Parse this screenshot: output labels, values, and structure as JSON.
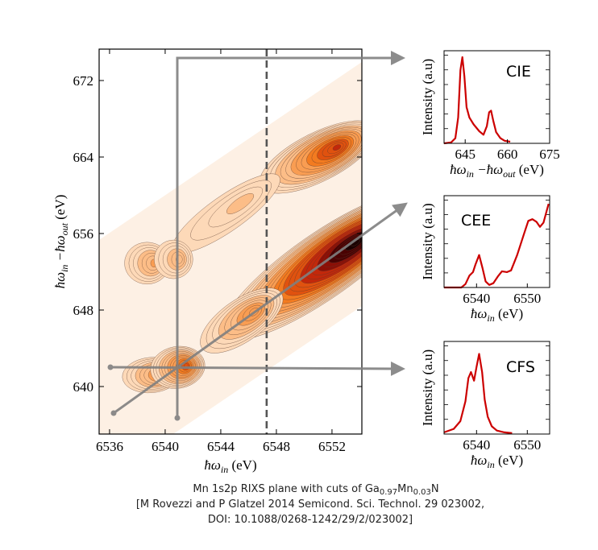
{
  "chart_data": [
    {
      "type": "heatmap",
      "subtype": "filled-contour",
      "xlabel_parts": [
        "ħω",
        "in",
        " (eV)"
      ],
      "ylabel_parts": [
        "ħω",
        "in",
        " −ħω",
        "out",
        " (eV)"
      ],
      "xlim": [
        6535.2,
        6554.2
      ],
      "ylim": [
        635.0,
        675.3
      ],
      "xticks": [
        "6536",
        "6540",
        "6544",
        "6548",
        "6552"
      ],
      "yticks": [
        "640",
        "648",
        "656",
        "664",
        "672"
      ],
      "colormap": [
        "#fdeee2",
        "#fdd9b8",
        "#fcbd87",
        "#f99d52",
        "#f37b20",
        "#e0520f",
        "#c2280b",
        "#8c0f06",
        "#4a0202",
        "#1a0000"
      ],
      "peaks": [
        {
          "x": 6551.3,
          "y": 652.6,
          "intensity": 1.0
        },
        {
          "x": 6551.0,
          "y": 664.0,
          "intensity": 0.62
        },
        {
          "x": 6545.5,
          "y": 646.9,
          "intensity": 0.38
        },
        {
          "x": 6544.4,
          "y": 658.1,
          "intensity": 0.16
        },
        {
          "x": 6538.7,
          "y": 652.9,
          "intensity": 0.3
        },
        {
          "x": 6540.6,
          "y": 653.3,
          "intensity": 0.24
        },
        {
          "x": 6539.0,
          "y": 641.2,
          "intensity": 0.36
        },
        {
          "x": 6540.9,
          "y": 642.0,
          "intensity": 0.55
        }
      ],
      "cuts": {
        "constant_incident_energy": 6540.7,
        "constant_final_state": 642.0,
        "constant_emission_energy_line": [
          [
            6536.0,
            637.0
          ],
          [
            6554.0,
            656.0
          ]
        ],
        "dashed_line_x": 6547.3
      }
    },
    {
      "type": "line",
      "label": "CIE",
      "ylabel": "Intensity (a.u)",
      "xlabel_parts": [
        "ħω",
        "in",
        " −ħω",
        "out",
        " (eV)"
      ],
      "xlim": [
        637.5,
        675
      ],
      "xticks": [
        "645",
        "660",
        "675"
      ],
      "color": "#cc0000",
      "x": [
        637.5,
        640,
        641.5,
        642.5,
        643.3,
        644,
        644.7,
        645.5,
        646.5,
        648,
        650,
        651.5,
        652.7,
        653.5,
        654.2,
        655,
        656,
        657.5,
        659,
        661
      ],
      "y": [
        0.0,
        0.01,
        0.06,
        0.3,
        0.85,
        1.0,
        0.78,
        0.42,
        0.3,
        0.22,
        0.14,
        0.1,
        0.2,
        0.36,
        0.38,
        0.26,
        0.13,
        0.06,
        0.03,
        0.02
      ]
    },
    {
      "type": "line",
      "label": "CEE",
      "ylabel": "Intensity (a.u)",
      "xlabel_parts": [
        "ħω",
        "in",
        " (eV)"
      ],
      "xlim": [
        6533.6,
        6554.4
      ],
      "xticks": [
        "6540",
        "6550"
      ],
      "color": "#cc0000",
      "x": [
        6533.6,
        6537,
        6537.8,
        6538.6,
        6539.3,
        6539.8,
        6540.5,
        6541.2,
        6541.8,
        6542.5,
        6543.3,
        6544.2,
        6545,
        6546,
        6546.8,
        6548,
        6549.3,
        6550.2,
        6551,
        6551.8,
        6552.5,
        6553.2,
        6554.2
      ],
      "y": [
        0.0,
        0.0,
        0.04,
        0.14,
        0.18,
        0.27,
        0.38,
        0.22,
        0.07,
        0.03,
        0.05,
        0.13,
        0.19,
        0.18,
        0.2,
        0.38,
        0.62,
        0.78,
        0.8,
        0.77,
        0.71,
        0.76,
        0.98
      ]
    },
    {
      "type": "line",
      "label": "CFS",
      "ylabel": "Intensity (a.u)",
      "xlabel_parts": [
        "ħω",
        "in",
        " (eV)"
      ],
      "xlim": [
        6533.6,
        6554.4
      ],
      "xticks": [
        "6540",
        "6550"
      ],
      "color": "#cc0000",
      "x": [
        6533.6,
        6535.5,
        6536.8,
        6537.8,
        6538.4,
        6538.9,
        6539.5,
        6540,
        6540.5,
        6541.1,
        6541.6,
        6542.2,
        6543,
        6544,
        6545.5,
        6547
      ],
      "y": [
        0.02,
        0.06,
        0.15,
        0.38,
        0.65,
        0.72,
        0.62,
        0.78,
        0.93,
        0.72,
        0.4,
        0.2,
        0.09,
        0.04,
        0.02,
        0.01
      ]
    }
  ],
  "caption": {
    "line1_pre": "Mn 1s2p RIXS plane with cuts of Ga",
    "sub1": "0.97",
    "mid": "Mn",
    "sub2": "0.03",
    "end": "N",
    "line2": "[M Rovezzi and P Glatzel 2014 Semicond. Sci. Technol. 29 023002,",
    "line3": "DOI: 10.1088/0268-1242/29/2/023002]"
  },
  "overlay_color": "#808080"
}
